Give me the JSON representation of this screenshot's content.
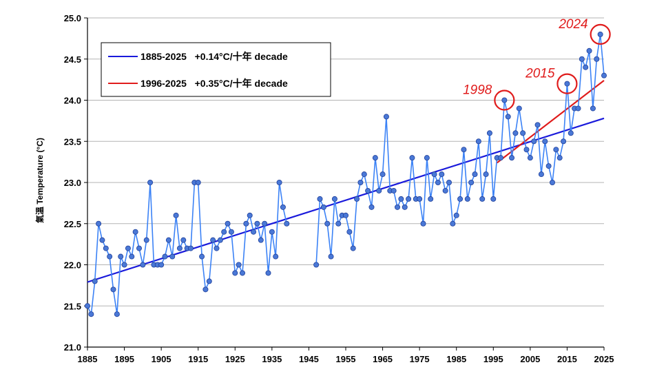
{
  "chart_data": {
    "type": "line",
    "ylabel": "氣溫 Temperature (°C)",
    "xlim": [
      1885,
      2025
    ],
    "ylim": [
      21.0,
      25.0
    ],
    "x_ticks": [
      "1885",
      "1895",
      "1905",
      "1915",
      "1925",
      "1935",
      "1945",
      "1955",
      "1965",
      "1975",
      "1985",
      "1995",
      "2005",
      "2015",
      "2025"
    ],
    "y_ticks": [
      "21.0",
      "21.5",
      "22.0",
      "22.5",
      "23.0",
      "23.5",
      "24.0",
      "24.5",
      "25.0"
    ],
    "grid": "horizontal",
    "legend_position": "top-left",
    "colors": {
      "series": "#3b82f6",
      "marker_fill": "#4a78d6",
      "marker_edge": "#1f3f99",
      "trend_long": "#1a1adb",
      "trend_short": "#e01b1b",
      "annotation": "#e01b1b"
    },
    "series": [
      {
        "x": [
          1885,
          1886,
          1887,
          1888,
          1889,
          1890,
          1891,
          1892,
          1893,
          1894,
          1895,
          1896,
          1897,
          1898,
          1899,
          1900,
          1901,
          1902,
          1903,
          1904,
          1905,
          1906,
          1907,
          1908,
          1909,
          1910,
          1911,
          1912,
          1913,
          1914,
          1915,
          1916,
          1917,
          1918,
          1919,
          1920,
          1921,
          1922,
          1923,
          1924,
          1925,
          1926,
          1927,
          1928,
          1929,
          1930,
          1931,
          1932,
          1933,
          1934,
          1935,
          1936,
          1937,
          1938,
          1939,
          null,
          1947,
          1948,
          1949,
          1950,
          1951,
          1952,
          1953,
          1954,
          1955,
          1956,
          1957,
          1958,
          1959,
          1960,
          1961,
          1962,
          1963,
          1964,
          1965,
          1966,
          1967,
          1968,
          1969,
          1970,
          1971,
          1972,
          1973,
          1974,
          1975,
          1976,
          1977,
          1978,
          1979,
          1980,
          1981,
          1982,
          1983,
          1984,
          1985,
          1986,
          1987,
          1988,
          1989,
          1990,
          1991,
          1992,
          1993,
          1994,
          1995,
          1996,
          1997,
          1998,
          1999,
          2000,
          2001,
          2002,
          2003,
          2004,
          2005,
          2006,
          2007,
          2008,
          2009,
          2010,
          2011,
          2012,
          2013,
          2014,
          2015,
          2016,
          2017,
          2018,
          2019,
          2020,
          2021,
          2022,
          2023,
          2024,
          2025
        ],
        "values": [
          21.5,
          21.4,
          21.8,
          22.5,
          22.3,
          22.2,
          22.1,
          21.7,
          21.4,
          22.1,
          22.0,
          22.2,
          22.1,
          22.4,
          22.2,
          22.0,
          22.3,
          23.0,
          22.0,
          22.0,
          22.0,
          22.1,
          22.3,
          22.1,
          22.6,
          22.2,
          22.3,
          22.2,
          22.2,
          23.0,
          23.0,
          22.1,
          21.7,
          21.8,
          22.3,
          22.2,
          22.3,
          22.4,
          22.5,
          22.4,
          21.9,
          22.0,
          21.9,
          22.5,
          22.6,
          22.4,
          22.5,
          22.3,
          22.5,
          21.9,
          22.4,
          22.1,
          23.0,
          22.7,
          22.5,
          null,
          22.0,
          22.8,
          22.7,
          22.5,
          22.1,
          22.8,
          22.5,
          22.6,
          22.6,
          22.4,
          22.2,
          22.8,
          23.0,
          23.1,
          22.9,
          22.7,
          23.3,
          22.9,
          23.1,
          23.8,
          22.9,
          22.9,
          22.7,
          22.8,
          22.7,
          22.8,
          23.3,
          22.8,
          22.8,
          22.5,
          23.3,
          22.8,
          23.1,
          23.0,
          23.1,
          22.9,
          23.0,
          22.5,
          22.6,
          22.8,
          23.4,
          22.8,
          23.0,
          23.1,
          23.5,
          22.8,
          23.1,
          23.6,
          22.8,
          23.3,
          23.3,
          24.0,
          23.8,
          23.3,
          23.6,
          23.9,
          23.6,
          23.4,
          23.3,
          23.5,
          23.7,
          23.1,
          23.5,
          23.2,
          23.0,
          23.4,
          23.3,
          23.5,
          24.2,
          23.6,
          23.9,
          23.9,
          24.5,
          24.4,
          24.6,
          23.9,
          24.5,
          24.8,
          24.3
        ]
      }
    ],
    "trendlines": [
      {
        "label": "1885-2025   +0.14°C/十年 decade",
        "x": [
          1885,
          2025
        ],
        "y": [
          21.79,
          23.78
        ]
      },
      {
        "label": "1996-2025   +0.35°C/十年 decade",
        "x": [
          1996,
          2025
        ],
        "y": [
          23.24,
          24.24
        ]
      }
    ],
    "annotations": [
      {
        "text": "1998",
        "x": 1998,
        "y": 24.0
      },
      {
        "text": "2015",
        "x": 2015,
        "y": 24.2
      },
      {
        "text": "2024",
        "x": 2024,
        "y": 24.8
      }
    ]
  }
}
